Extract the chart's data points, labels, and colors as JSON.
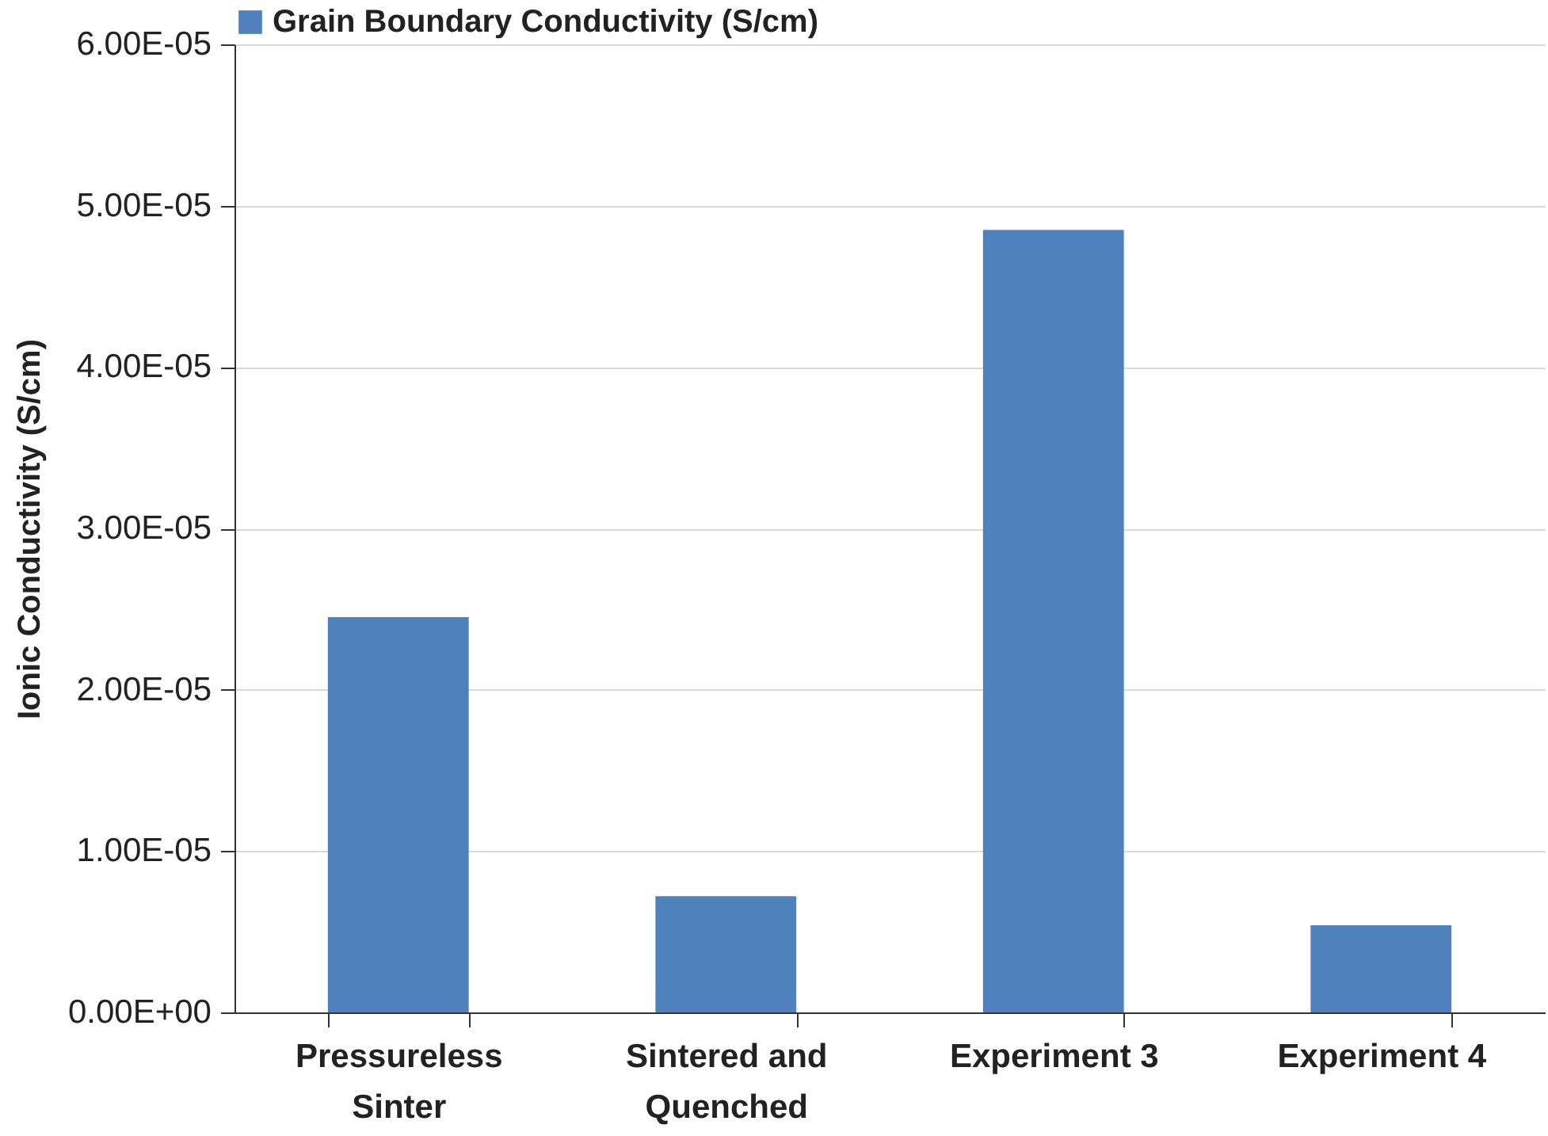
{
  "chart_data": {
    "type": "bar",
    "ylabel": "Ionic Conductivity (S/cm)",
    "categories": [
      "Pressureless Sinter",
      "Sintered and Quenched",
      "Experiment 3",
      "Experiment 4"
    ],
    "series": [
      {
        "name": "Grain Boundary Conductivity (S/cm)",
        "color": "#4f81bd",
        "values": [
          2.45e-05,
          7.2e-06,
          4.85e-05,
          5.4e-06
        ]
      }
    ],
    "ylim": [
      0,
      6e-05
    ],
    "yticks": [
      {
        "value": 0,
        "label": "0.00E+00"
      },
      {
        "value": 1e-05,
        "label": "1.00E-05"
      },
      {
        "value": 2e-05,
        "label": "2.00E-05"
      },
      {
        "value": 3e-05,
        "label": "3.00E-05"
      },
      {
        "value": 4e-05,
        "label": "4.00E-05"
      },
      {
        "value": 5e-05,
        "label": "5.00E-05"
      },
      {
        "value": 6e-05,
        "label": "6.00E-05"
      }
    ],
    "grid": "y",
    "legend": "top"
  }
}
